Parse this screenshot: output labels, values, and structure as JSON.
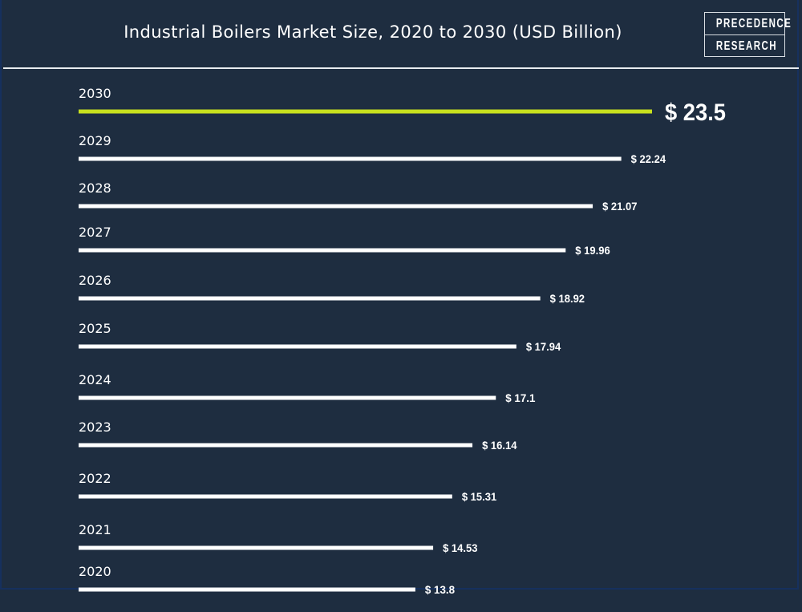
{
  "header": {
    "title": "Industrial Boilers Market Size, 2020 to 2030 (USD Billion)",
    "logo_line1": "PRECEDENCE",
    "logo_line2": "RESEARCH"
  },
  "colors": {
    "background": "#1e2d40",
    "bar": "#ffffff",
    "highlight_bar": "#c8e01e",
    "text": "#ffffff"
  },
  "chart_data": {
    "type": "bar",
    "orientation": "horizontal",
    "title": "Industrial Boilers Market Size, 2020 to 2030 (USD Billion)",
    "xlabel": "",
    "ylabel": "",
    "currency_prefix": "$ ",
    "categories": [
      "2030",
      "2029",
      "2028",
      "2027",
      "2026",
      "2025",
      "2024",
      "2023",
      "2022",
      "2021",
      "2020"
    ],
    "values": [
      23.5,
      22.24,
      21.07,
      19.96,
      18.92,
      17.94,
      17.1,
      16.14,
      15.31,
      14.53,
      13.8
    ],
    "value_labels": [
      "$ 23.5",
      "$ 22.24",
      "$ 21.07",
      "$ 19.96",
      "$ 18.92",
      "$ 17.94",
      "$ 17.1",
      "$ 16.14",
      "$ 15.31",
      "$ 14.53",
      "$ 13.8"
    ],
    "highlight_category": "2030",
    "grid": false,
    "legend": "none"
  }
}
